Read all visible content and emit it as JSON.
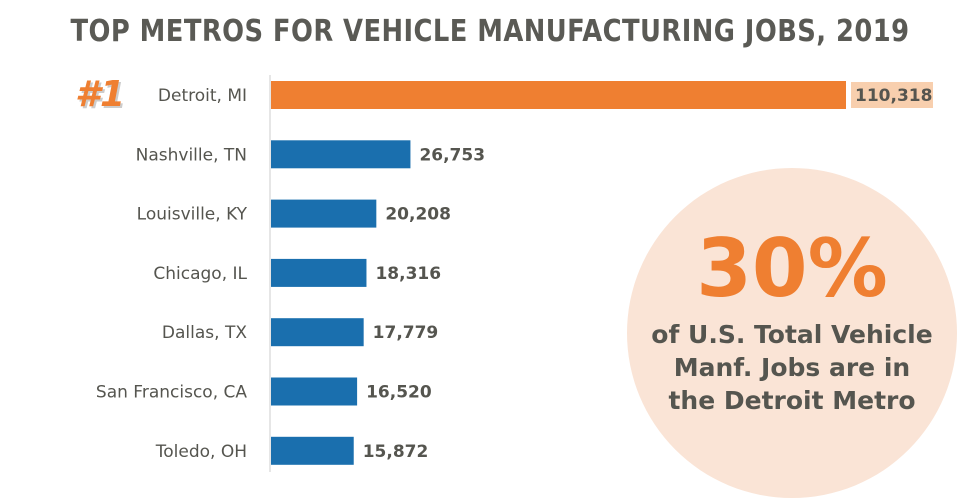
{
  "chart_data": {
    "type": "bar",
    "orientation": "horizontal",
    "title": "TOP METROS FOR VEHICLE MANUFACTURING JOBS, 2019",
    "categories": [
      "Detroit, MI",
      "Nashville, TN",
      "Louisville, KY",
      "Chicago, IL",
      "Dallas, TX",
      "San Francisco, CA",
      "Toledo, OH"
    ],
    "values": [
      110318,
      26753,
      20208,
      18316,
      17779,
      16520,
      15872
    ],
    "value_labels": [
      "110,318",
      "26,753",
      "20,208",
      "18,316",
      "17,779",
      "16,520",
      "15,872"
    ],
    "highlight_index": 0,
    "xlim": [
      0,
      110318
    ],
    "grid": false
  },
  "rank_badge": "#1",
  "callout": {
    "percent": "30%",
    "lines": [
      "of U.S. Total Vehicle",
      "Manf. Jobs are in",
      "the Detroit Metro"
    ]
  },
  "colors": {
    "highlight": "#ef7f31",
    "bar": "#1a6fae",
    "text": "#55554f",
    "circle": "#fae4d6"
  }
}
